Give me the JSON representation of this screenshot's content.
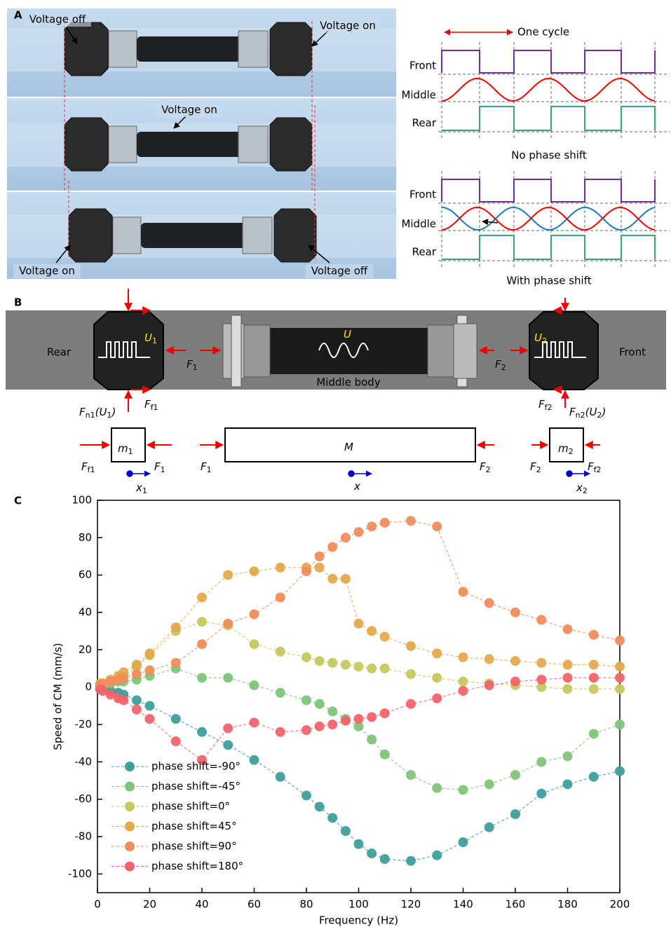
{
  "panel_letters": [
    "A",
    "B",
    "C"
  ],
  "panel_a": {
    "photo_labels": [
      "Voltage off",
      "Voltage on",
      "Voltage on",
      "Voltage on",
      "Voltage off"
    ],
    "cycle_label": "One cycle",
    "rows": [
      "Front",
      "Middle",
      "Rear"
    ],
    "captions": [
      "No phase shift",
      "With phase shift"
    ]
  },
  "panel_b": {
    "texts": [
      "Rear",
      "Front",
      "Middle body"
    ],
    "labels": [
      [
        "U",
        "1"
      ],
      [
        "U"
      ],
      [
        "U",
        "2"
      ],
      [
        "F",
        "1"
      ],
      [
        "F",
        "2"
      ],
      [
        "F",
        "n1",
        "(U",
        "1",
        ")"
      ],
      [
        "F",
        "f1"
      ],
      [
        "F",
        "f2"
      ],
      [
        "F",
        "n2",
        "(U",
        "2",
        ")"
      ],
      [
        "m",
        "1"
      ],
      [
        "M"
      ],
      [
        "m",
        "2"
      ],
      [
        "F",
        "f1"
      ],
      [
        "F",
        "1"
      ],
      [
        "F",
        "1"
      ],
      [
        "F",
        "2"
      ],
      [
        "F",
        "2"
      ],
      [
        "F",
        "f2"
      ],
      [
        "x",
        "1"
      ],
      [
        "x"
      ],
      [
        "x",
        "2"
      ]
    ]
  },
  "chart_data": {
    "type": "line",
    "x_label": "Frequency (Hz)",
    "y_label": "Speed of CM (mm/s)",
    "x": [
      1,
      2,
      5,
      8,
      10,
      15,
      20,
      30,
      40,
      50,
      60,
      70,
      80,
      85,
      90,
      95,
      100,
      105,
      110,
      120,
      130,
      140,
      150,
      160,
      170,
      180,
      190,
      200
    ],
    "xlim": [
      0,
      200
    ],
    "xticks": [
      0,
      20,
      40,
      60,
      80,
      100,
      120,
      140,
      160,
      180,
      200
    ],
    "ylim": [
      -110,
      100
    ],
    "yticks": [
      -100,
      -80,
      -60,
      -40,
      -20,
      0,
      20,
      40,
      60,
      80,
      100
    ],
    "legend": "lower left",
    "series": [
      {
        "name": "phase shift=-90°",
        "color": "#3f9f9c",
        "values": [
          -1,
          -1,
          -2,
          -3,
          -4,
          -7,
          -10,
          -17,
          -24,
          -31,
          -39,
          -48,
          -58,
          -64,
          -70,
          -77,
          -84,
          -89,
          -92,
          -93,
          -90,
          -83,
          -75,
          -68,
          -57,
          -52,
          -48,
          -45
        ]
      },
      {
        "name": "phase shift=-45°",
        "color": "#80c47a",
        "values": [
          0,
          1,
          2,
          3,
          3,
          4,
          6,
          10,
          5,
          5,
          1,
          -3,
          -7,
          -9,
          -13,
          -17,
          -21,
          -28,
          -36,
          -47,
          -54,
          -55,
          -52,
          -47,
          -40,
          -37,
          -25,
          -20
        ]
      },
      {
        "name": "phase shift=0°",
        "color": "#c6c95e",
        "values": [
          1,
          1,
          3,
          4,
          5,
          11,
          17,
          30,
          35,
          33,
          23,
          19,
          16,
          14,
          13,
          12,
          11,
          10,
          10,
          7,
          5,
          3,
          2,
          1,
          0,
          -1,
          -1,
          -1
        ]
      },
      {
        "name": "phase shift=45°",
        "color": "#e2aa4c",
        "values": [
          2,
          2,
          4,
          6,
          8,
          12,
          18,
          32,
          48,
          60,
          62,
          64,
          64,
          64,
          58,
          58,
          34,
          30,
          27,
          22,
          18,
          16,
          15,
          14,
          13,
          12,
          12,
          11
        ]
      },
      {
        "name": "phase shift=90°",
        "color": "#f08d5c",
        "values": [
          1,
          2,
          3,
          4,
          5,
          7,
          9,
          13,
          23,
          34,
          39,
          48,
          62,
          70,
          75,
          80,
          83,
          86,
          88,
          89,
          86,
          51,
          45,
          40,
          36,
          31,
          28,
          25
        ]
      },
      {
        "name": "phase shift=180°",
        "color": "#f2636c",
        "values": [
          -1,
          -2,
          -4,
          -6,
          -7,
          -12,
          -17,
          -29,
          -39,
          -22,
          -19,
          -24,
          -23,
          -21,
          -20,
          -18,
          -17,
          -16,
          -14,
          -9,
          -6,
          -2,
          1,
          3,
          4,
          5,
          5,
          5
        ]
      }
    ]
  }
}
